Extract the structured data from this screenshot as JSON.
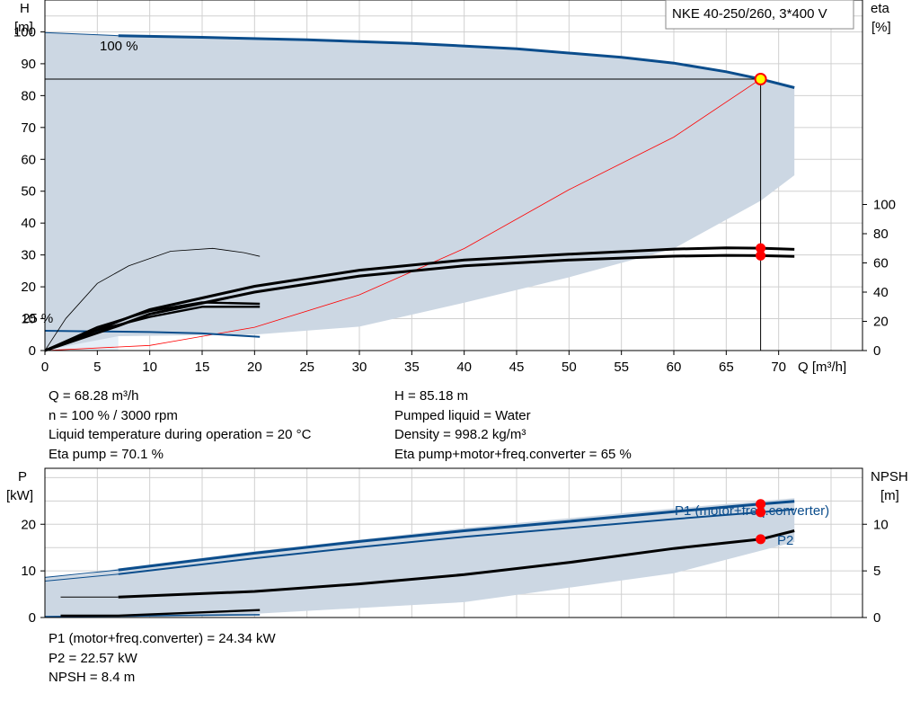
{
  "chart_data": [
    {
      "type": "line",
      "title": "NKE 40-250/260, 3*400 V",
      "xlabel": "Q [m³/h]",
      "ylabel_left": [
        "H",
        "[m]"
      ],
      "ylabel_right": [
        "eta",
        "[%]"
      ],
      "xlim": [
        0,
        78
      ],
      "ylim_left": [
        0,
        110
      ],
      "ylim_right": [
        0,
        100
      ],
      "x_ticks": [
        "0",
        "5",
        "10",
        "15",
        "20",
        "25",
        "30",
        "35",
        "40",
        "45",
        "50",
        "55",
        "60",
        "65",
        "70"
      ],
      "y_ticks_left": [
        "0",
        "10",
        "20",
        "30",
        "40",
        "50",
        "60",
        "70",
        "80",
        "90",
        "100"
      ],
      "y_ticks_right": [
        "0",
        "20",
        "40",
        "60",
        "80",
        "100"
      ],
      "grid": true,
      "annotations": [
        "100 %",
        "25 %"
      ],
      "operating_point": {
        "Q": 68.28,
        "H": 85.18,
        "eta_pump": 70.1,
        "eta_total": 65
      },
      "series": [
        {
          "role": "H-curve 100%",
          "x": [
            7,
            15,
            25,
            35,
            45,
            55,
            60,
            65,
            68.28,
            71.5
          ],
          "y": [
            98.8,
            98.3,
            97.5,
            96.4,
            94.7,
            92.0,
            90.2,
            87.5,
            85.2,
            82.5
          ]
        },
        {
          "role": "H-curve 25%",
          "x": [
            0,
            5,
            10,
            15,
            20.5
          ],
          "y": [
            6.2,
            6.0,
            5.8,
            5.4,
            4.3
          ]
        },
        {
          "role": "H-curve extension",
          "x": [
            0,
            7
          ],
          "y": [
            99.8,
            98.8
          ]
        },
        {
          "role": "eta pump",
          "x": [
            0,
            7,
            10,
            20,
            30,
            40,
            50,
            60,
            65,
            68.28,
            71.5
          ],
          "y": [
            0,
            20,
            28,
            44,
            55,
            62,
            66,
            69.5,
            70.3,
            70.1,
            69.3
          ]
        },
        {
          "role": "eta total",
          "x": [
            0,
            7,
            10,
            20,
            30,
            40,
            50,
            60,
            65,
            68.28,
            71.5
          ],
          "y": [
            0,
            17,
            25,
            40,
            51,
            58,
            62,
            64.6,
            65.2,
            65,
            64.5
          ]
        },
        {
          "role": "eta 25% pump",
          "x": [
            0,
            5,
            10,
            15,
            20.5
          ],
          "y": [
            0,
            16,
            27,
            33,
            32
          ]
        },
        {
          "role": "eta 25% total",
          "x": [
            0,
            5,
            10,
            15,
            20.5
          ],
          "y": [
            0,
            14,
            23,
            30,
            30
          ]
        },
        {
          "role": "eta best thin",
          "x": [
            0,
            2,
            5,
            8,
            12,
            16,
            19,
            20.5
          ],
          "y": [
            0,
            22,
            46,
            58,
            68,
            70,
            67,
            64.5
          ]
        },
        {
          "role": "system curve",
          "x": [
            0,
            10,
            20,
            30,
            40,
            50,
            60,
            68.28
          ],
          "y": [
            0,
            1.6,
            7.3,
            17.5,
            32,
            50.5,
            67,
            85.2
          ]
        },
        {
          "role": "H band upper",
          "x": [
            0,
            7,
            15,
            25,
            35,
            45,
            55,
            60,
            65,
            68.28,
            71.5
          ],
          "y": [
            99.8,
            98.8,
            98.3,
            97.5,
            96.4,
            94.7,
            92.0,
            90.2,
            87.5,
            85.2,
            82.5
          ]
        },
        {
          "role": "H band lower",
          "x": [
            0,
            3,
            7,
            12,
            20,
            30,
            40,
            50,
            60,
            68.28,
            71.5
          ],
          "y": [
            0,
            2,
            4.5,
            4.7,
            5,
            7.5,
            15,
            23,
            32,
            47,
            55
          ]
        }
      ]
    },
    {
      "type": "line",
      "xlim": [
        0,
        78
      ],
      "ylabel_left": [
        "P",
        "[kW]"
      ],
      "ylabel_right": [
        "NPSH",
        "[m]"
      ],
      "ylim_left": [
        0,
        32
      ],
      "ylim_right": [
        0,
        16
      ],
      "y_ticks_left": [
        "0",
        "10",
        "20"
      ],
      "y_ticks_right": [
        "0",
        "5",
        "10"
      ],
      "grid": true,
      "legend": [
        "P1 (motor+freq.converter)",
        "P2"
      ],
      "operating_point": {
        "Q": 68.28,
        "P1": 24.34,
        "P2": 22.57,
        "NPSH": 8.4
      },
      "series": [
        {
          "name": "P1 (motor+freq.converter)",
          "x": [
            0,
            7,
            20,
            30,
            40,
            50,
            60,
            68.28,
            71.5
          ],
          "y": [
            8.6,
            10.2,
            13.8,
            16.3,
            18.6,
            20.6,
            22.7,
            24.34,
            24.9
          ]
        },
        {
          "name": "P2",
          "x": [
            0,
            7,
            20,
            30,
            40,
            50,
            60,
            68.28,
            71.5
          ],
          "y": [
            7.8,
            9.3,
            12.7,
            15.1,
            17.3,
            19.2,
            21.1,
            22.57,
            23.2
          ]
        },
        {
          "role": "NPSH",
          "x": [
            1.5,
            7,
            20,
            30,
            40,
            50,
            60,
            68.28,
            71.5
          ],
          "y": [
            2.2,
            2.2,
            2.8,
            3.6,
            4.6,
            5.9,
            7.4,
            8.4,
            9.3
          ]
        },
        {
          "role": "NPSH 25%",
          "x": [
            1.5,
            7,
            20.5
          ],
          "y": [
            0.2,
            0.2,
            0.8
          ]
        },
        {
          "role": "P1 25%",
          "x": [
            0,
            7,
            20.5
          ],
          "y": [
            0.2,
            0.3,
            0.6
          ]
        },
        {
          "role": "P band upper",
          "x": [
            0,
            4,
            7,
            20,
            40,
            60,
            71.5
          ],
          "y": [
            8.6,
            9.2,
            10.5,
            14.2,
            19.2,
            23.4,
            25.6
          ]
        },
        {
          "role": "P band lower",
          "x": [
            0,
            7,
            20,
            40,
            60,
            71.5
          ],
          "y": [
            0,
            0,
            0.8,
            3.3,
            9.5,
            16.2
          ]
        }
      ]
    }
  ],
  "info_top": {
    "left": [
      "Q = 68.28 m³/h",
      "n = 100 % / 3000 rpm",
      "Liquid temperature during operation = 20 °C",
      "Eta pump = 70.1 %"
    ],
    "right": [
      "H = 85.18 m",
      "Pumped liquid = Water",
      "Density = 998.2 kg/m³",
      "Eta pump+motor+freq.converter = 65 %"
    ]
  },
  "info_bottom": [
    "P1 (motor+freq.converter) = 24.34 kW",
    "P2 = 22.57 kW",
    "NPSH = 8.4 m"
  ],
  "colors": {
    "blue": "#0b4d8c",
    "band": "#ccd7e3",
    "band_light": "#e6eff8",
    "op_point": "#ff0000",
    "op_highlight": "#ffff00",
    "system": "#ff0000"
  }
}
